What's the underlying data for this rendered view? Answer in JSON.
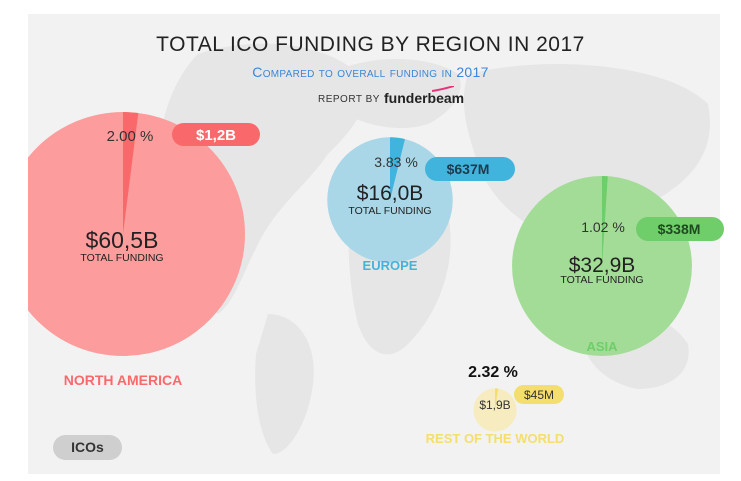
{
  "title": "TOTAL ICO FUNDING BY REGION IN 2017",
  "subtitle": "Compared to overall funding in 2017",
  "report_by": "REPORT BY",
  "brand": "funderbeam",
  "legend_label": "ICOs",
  "colors": {
    "north_america": "#fd9c9c",
    "north_america_accent": "#f9696b",
    "europe": "#a9d7e8",
    "europe_accent": "#41b4dd",
    "asia": "#a3dc96",
    "asia_accent": "#6fcd6a",
    "rest": "#f6ecc0",
    "rest_accent": "#f3de6e"
  },
  "chart_data": {
    "type": "pie",
    "title": "TOTAL ICO FUNDING BY REGION IN 2017",
    "subtitle": "Compared to overall funding in 2017",
    "series": [
      {
        "name": "NORTH AMERICA",
        "total_funding": "$60,5B",
        "total_funding_value": 60.5,
        "total_label": "TOTAL FUNDING",
        "ico_funding": "$1,2B",
        "ico_share_percent": 2.0,
        "ico_share_label": "2.00 %"
      },
      {
        "name": "EUROPE",
        "total_funding": "$16,0B",
        "total_funding_value": 16.0,
        "total_label": "TOTAL FUNDING",
        "ico_funding": "$637M",
        "ico_share_percent": 3.83,
        "ico_share_label": "3.83 %"
      },
      {
        "name": "ASIA",
        "total_funding": "$32,9B",
        "total_funding_value": 32.9,
        "total_label": "TOTAL FUNDING",
        "ico_funding": "$338M",
        "ico_share_percent": 1.02,
        "ico_share_label": "1.02 %"
      },
      {
        "name": "REST OF THE WORLD",
        "total_funding": "$1,9B",
        "total_funding_value": 1.9,
        "total_label": "",
        "ico_funding": "$45M",
        "ico_share_percent": 2.32,
        "ico_share_label": "2.32 %"
      }
    ],
    "legend": [
      "ICOs"
    ]
  }
}
